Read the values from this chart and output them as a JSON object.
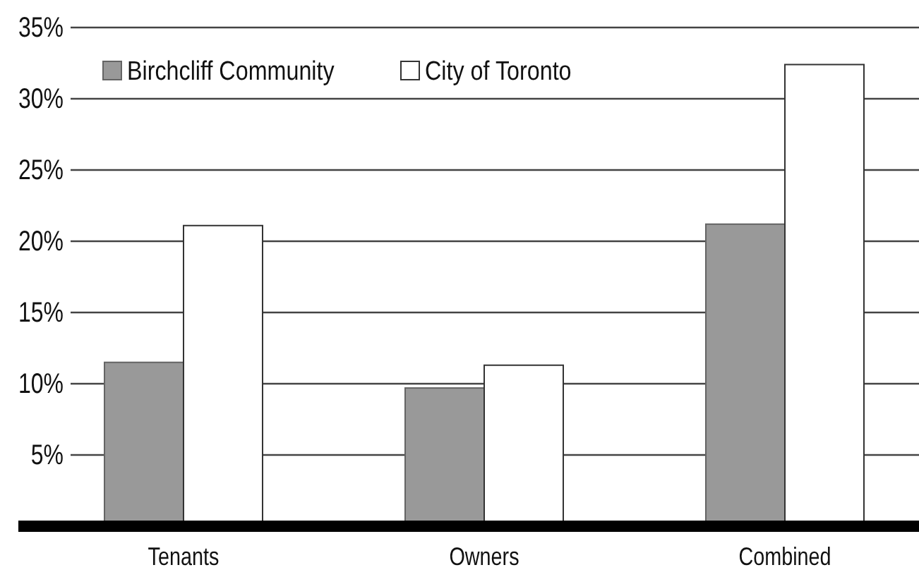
{
  "chart_data": {
    "type": "bar",
    "categories": [
      "Tenants",
      "Owners",
      "Combined"
    ],
    "series": [
      {
        "name": "Birchcliff Community",
        "color": "#999999",
        "values": [
          11.5,
          9.7,
          21.2
        ]
      },
      {
        "name": "City of Toronto",
        "color": "#ffffff",
        "values": [
          21.1,
          11.3,
          32.4
        ]
      }
    ],
    "ylim": [
      0,
      35
    ],
    "yticks": [
      {
        "value": 5,
        "label": "5%"
      },
      {
        "value": 10,
        "label": "10%"
      },
      {
        "value": 15,
        "label": "15%"
      },
      {
        "value": 20,
        "label": "20%"
      },
      {
        "value": 25,
        "label": "25%"
      },
      {
        "value": 30,
        "label": "30%"
      },
      {
        "value": 35,
        "label": "35%"
      }
    ],
    "grid": "y",
    "legend": "top left"
  }
}
